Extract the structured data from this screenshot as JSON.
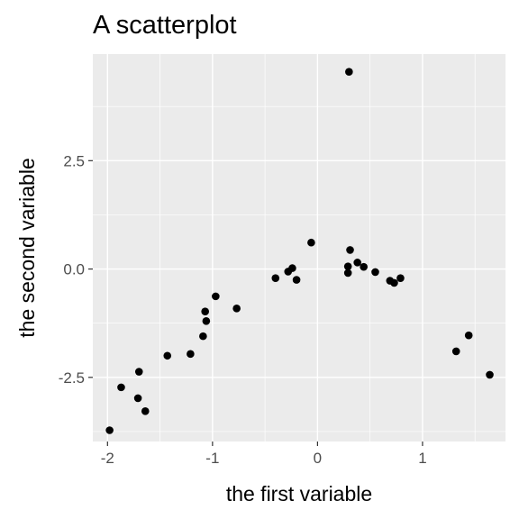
{
  "chart_data": {
    "type": "scatter",
    "title": "A scatterplot",
    "xlabel": "the first variable",
    "ylabel": "the second variable",
    "xlim": [
      -2.14,
      1.79
    ],
    "ylim": [
      -3.98,
      4.96
    ],
    "x_ticks": [
      -2,
      -1,
      0,
      1
    ],
    "x_tick_labels": [
      "-2",
      "-1",
      "0",
      "1"
    ],
    "y_ticks": [
      -2.5,
      0.0,
      2.5
    ],
    "y_tick_labels": [
      "-2.5",
      "0.0",
      "2.5"
    ],
    "grid": true,
    "legend": "none",
    "colors": {
      "panel": "#ebebeb",
      "grid": "#ffffff",
      "point": "#000000",
      "tick": "#4d4d4d"
    },
    "points": [
      {
        "x": -1.98,
        "y": -3.72
      },
      {
        "x": -1.87,
        "y": -2.73
      },
      {
        "x": -1.71,
        "y": -2.98
      },
      {
        "x": -1.7,
        "y": -2.37
      },
      {
        "x": -1.64,
        "y": -3.28
      },
      {
        "x": -1.43,
        "y": -2.0
      },
      {
        "x": -1.21,
        "y": -1.96
      },
      {
        "x": -1.09,
        "y": -1.55
      },
      {
        "x": -1.07,
        "y": -0.98
      },
      {
        "x": -1.06,
        "y": -1.2
      },
      {
        "x": -0.97,
        "y": -0.63
      },
      {
        "x": -0.77,
        "y": -0.91
      },
      {
        "x": -0.4,
        "y": -0.21
      },
      {
        "x": -0.28,
        "y": -0.06
      },
      {
        "x": -0.24,
        "y": 0.02
      },
      {
        "x": -0.2,
        "y": -0.25
      },
      {
        "x": -0.06,
        "y": 0.61
      },
      {
        "x": 0.3,
        "y": 4.55
      },
      {
        "x": 0.29,
        "y": 0.06
      },
      {
        "x": 0.29,
        "y": -0.09
      },
      {
        "x": 0.31,
        "y": 0.44
      },
      {
        "x": 0.38,
        "y": 0.15
      },
      {
        "x": 0.44,
        "y": 0.05
      },
      {
        "x": 0.55,
        "y": -0.07
      },
      {
        "x": 0.69,
        "y": -0.27
      },
      {
        "x": 0.73,
        "y": -0.32
      },
      {
        "x": 0.79,
        "y": -0.21
      },
      {
        "x": 1.32,
        "y": -1.9
      },
      {
        "x": 1.44,
        "y": -1.53
      },
      {
        "x": 1.64,
        "y": -2.44
      }
    ]
  }
}
